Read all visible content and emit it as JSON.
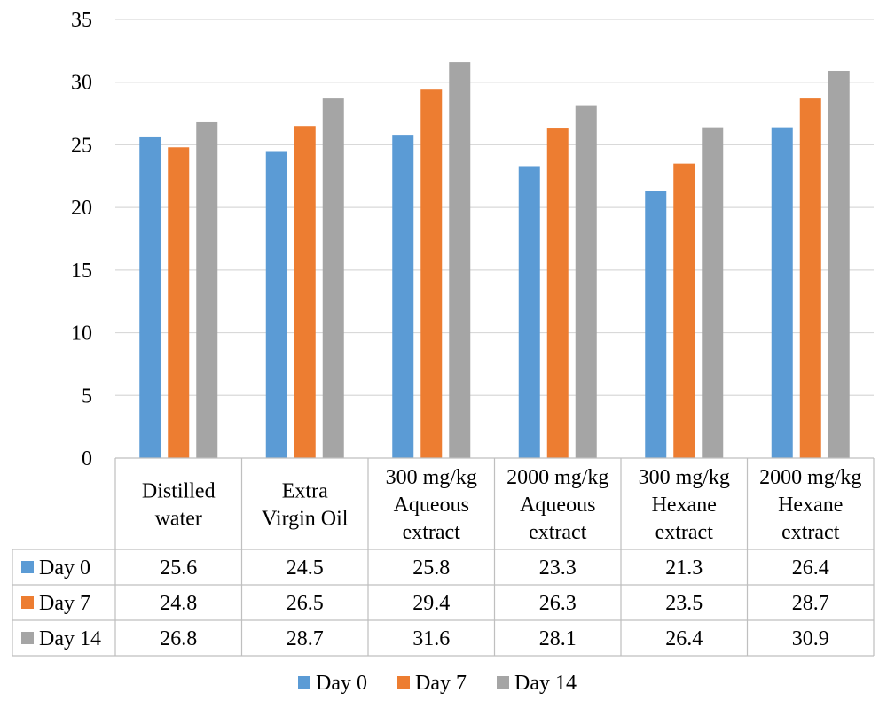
{
  "chart_data": {
    "type": "bar",
    "categories": [
      [
        "Distilled",
        "water"
      ],
      [
        "Extra",
        "Virgin Oil"
      ],
      [
        "300 mg/kg",
        "Aqueous",
        "extract"
      ],
      [
        "2000 mg/kg",
        "Aqueous",
        "extract"
      ],
      [
        "300 mg/kg",
        "Hexane",
        "extract"
      ],
      [
        "2000 mg/kg",
        "Hexane",
        "extract"
      ]
    ],
    "series": [
      {
        "name": "Day 0",
        "color": "#5B9BD5",
        "values": [
          25.6,
          24.5,
          25.8,
          23.3,
          21.3,
          26.4
        ]
      },
      {
        "name": "Day 7",
        "color": "#ED7D31",
        "values": [
          24.8,
          26.5,
          29.4,
          26.3,
          23.5,
          28.7
        ]
      },
      {
        "name": "Day 14",
        "color": "#A5A5A5",
        "values": [
          26.8,
          28.7,
          31.6,
          28.1,
          26.4,
          30.9
        ]
      }
    ],
    "yticks": [
      0,
      5,
      10,
      15,
      20,
      25,
      30,
      35
    ],
    "ylim": [
      0,
      35
    ],
    "grid": true,
    "legend_position": "bottom",
    "data_table": true
  }
}
